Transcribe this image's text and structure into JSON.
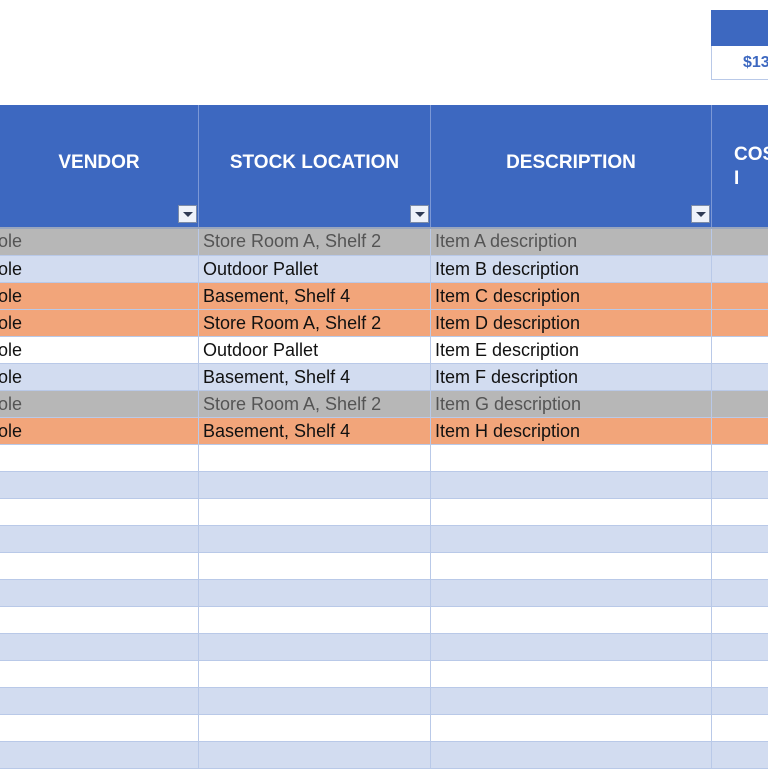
{
  "summary": {
    "value_text": "$13"
  },
  "table": {
    "columns": [
      {
        "label": "VENDOR"
      },
      {
        "label": "STOCK LOCATION"
      },
      {
        "label": "DESCRIPTION"
      },
      {
        "label": "COS I"
      }
    ],
    "rows": [
      {
        "vendor": "ole",
        "location": "Store Room A, Shelf 2",
        "description": "Item A description",
        "style": "gray"
      },
      {
        "vendor": "ole",
        "location": "Outdoor Pallet",
        "description": "Item B description",
        "style": "light"
      },
      {
        "vendor": "ole",
        "location": "Basement, Shelf 4",
        "description": "Item C description",
        "style": "orange"
      },
      {
        "vendor": "ole",
        "location": "Store Room A, Shelf 2",
        "description": "Item D description",
        "style": "orange"
      },
      {
        "vendor": "ole",
        "location": "Outdoor Pallet",
        "description": "Item E description",
        "style": "white"
      },
      {
        "vendor": "ole",
        "location": "Basement, Shelf 4",
        "description": "Item F description",
        "style": "light"
      },
      {
        "vendor": "ole",
        "location": "Store Room A, Shelf 2",
        "description": "Item G description",
        "style": "gray"
      },
      {
        "vendor": "ole",
        "location": "Basement, Shelf 4",
        "description": "Item H description",
        "style": "orange"
      },
      {
        "vendor": "",
        "location": "",
        "description": "",
        "style": "white"
      },
      {
        "vendor": "",
        "location": "",
        "description": "",
        "style": "light"
      },
      {
        "vendor": "",
        "location": "",
        "description": "",
        "style": "white"
      },
      {
        "vendor": "",
        "location": "",
        "description": "",
        "style": "light"
      },
      {
        "vendor": "",
        "location": "",
        "description": "",
        "style": "white"
      },
      {
        "vendor": "",
        "location": "",
        "description": "",
        "style": "light"
      },
      {
        "vendor": "",
        "location": "",
        "description": "",
        "style": "white"
      },
      {
        "vendor": "",
        "location": "",
        "description": "",
        "style": "light"
      },
      {
        "vendor": "",
        "location": "",
        "description": "",
        "style": "white"
      },
      {
        "vendor": "",
        "location": "",
        "description": "",
        "style": "light"
      },
      {
        "vendor": "",
        "location": "",
        "description": "",
        "style": "white"
      },
      {
        "vendor": "",
        "location": "",
        "description": "",
        "style": "light"
      }
    ]
  }
}
